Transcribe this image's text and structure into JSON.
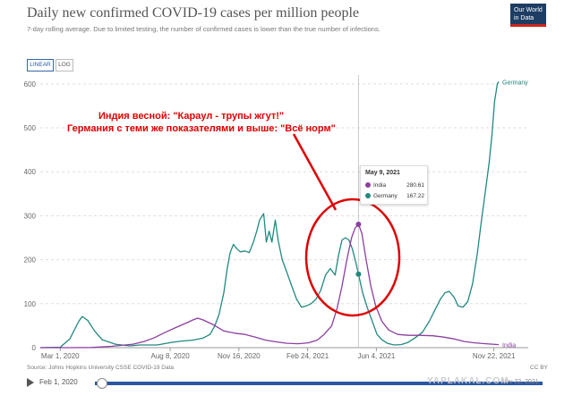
{
  "header": {
    "title": "Daily new confirmed COVID-19 cases per million people",
    "subtitle": "7-day rolling average. Due to limited testing, the number of confirmed cases is lower than the true number of infections.",
    "logo_text": "Our World in Data"
  },
  "toggles": {
    "linear": "LINEAR",
    "log": "LOG",
    "active": "linear"
  },
  "footer": {
    "source": "Source: Johns Hopkins University CSSE COVID-19 Data",
    "license": "CC BY",
    "timeline_start": "Feb 1, 2020",
    "timeline_end": "Nov 22, 2021"
  },
  "watermark": "YAPLAKAL.COM",
  "annotation": {
    "line1": "Индия весной: \"Караул - трупы жгут!\"",
    "line2": "Германия с теми же показателями и выше: \"Всё норм\""
  },
  "tooltip": {
    "date": "May 9, 2021",
    "rows": [
      {
        "name": "India",
        "value": "280.61"
      },
      {
        "name": "Germany",
        "value": "167.22"
      }
    ]
  },
  "chart_data": {
    "type": "line",
    "title": "Daily new confirmed COVID-19 cases per million people",
    "x_start": "2020-02-01",
    "x_end": "2021-11-29",
    "ylim": [
      0,
      620
    ],
    "yticks": [
      0,
      100,
      200,
      300,
      400,
      500,
      600
    ],
    "xticks": [
      "Mar 1, 2020",
      "Aug 8, 2020",
      "Nov 16, 2020",
      "Feb 24, 2021",
      "Jun 4, 2021",
      "Nov 22, 2021"
    ],
    "xtick_dates": [
      "2020-03-01",
      "2020-08-08",
      "2020-11-16",
      "2021-02-24",
      "2021-06-04",
      "2021-11-22"
    ],
    "grid": "horizontal dashed",
    "series": [
      {
        "name": "Germany",
        "color": "#21897e",
        "points": [
          [
            "2020-02-01",
            0
          ],
          [
            "2020-03-01",
            1
          ],
          [
            "2020-03-15",
            20
          ],
          [
            "2020-03-28",
            60
          ],
          [
            "2020-04-02",
            71
          ],
          [
            "2020-04-10",
            62
          ],
          [
            "2020-04-20",
            38
          ],
          [
            "2020-05-01",
            18
          ],
          [
            "2020-05-20",
            8
          ],
          [
            "2020-06-10",
            4
          ],
          [
            "2020-06-25",
            6
          ],
          [
            "2020-07-20",
            6
          ],
          [
            "2020-08-10",
            12
          ],
          [
            "2020-08-25",
            15
          ],
          [
            "2020-09-10",
            17
          ],
          [
            "2020-09-25",
            22
          ],
          [
            "2020-10-05",
            30
          ],
          [
            "2020-10-12",
            50
          ],
          [
            "2020-10-18",
            75
          ],
          [
            "2020-10-25",
            125
          ],
          [
            "2020-10-30",
            180
          ],
          [
            "2020-11-03",
            215
          ],
          [
            "2020-11-08",
            235
          ],
          [
            "2020-11-13",
            225
          ],
          [
            "2020-11-18",
            218
          ],
          [
            "2020-11-25",
            220
          ],
          [
            "2020-12-01",
            216
          ],
          [
            "2020-12-07",
            240
          ],
          [
            "2020-12-12",
            265
          ],
          [
            "2020-12-16",
            290
          ],
          [
            "2020-12-22",
            305
          ],
          [
            "2020-12-26",
            240
          ],
          [
            "2020-12-30",
            265
          ],
          [
            "2021-01-03",
            240
          ],
          [
            "2021-01-08",
            290
          ],
          [
            "2021-01-12",
            245
          ],
          [
            "2021-01-18",
            200
          ],
          [
            "2021-01-25",
            170
          ],
          [
            "2021-02-01",
            140
          ],
          [
            "2021-02-08",
            110
          ],
          [
            "2021-02-15",
            92
          ],
          [
            "2021-02-22",
            95
          ],
          [
            "2021-03-01",
            100
          ],
          [
            "2021-03-08",
            110
          ],
          [
            "2021-03-15",
            130
          ],
          [
            "2021-03-22",
            165
          ],
          [
            "2021-03-29",
            180
          ],
          [
            "2021-04-05",
            165
          ],
          [
            "2021-04-10",
            210
          ],
          [
            "2021-04-15",
            245
          ],
          [
            "2021-04-20",
            250
          ],
          [
            "2021-04-25",
            245
          ],
          [
            "2021-04-30",
            225
          ],
          [
            "2021-05-05",
            195
          ],
          [
            "2021-05-09",
            167.22
          ],
          [
            "2021-05-15",
            125
          ],
          [
            "2021-05-22",
            90
          ],
          [
            "2021-05-29",
            60
          ],
          [
            "2021-06-05",
            30
          ],
          [
            "2021-06-12",
            18
          ],
          [
            "2021-06-20",
            10
          ],
          [
            "2021-06-30",
            6
          ],
          [
            "2021-07-10",
            7
          ],
          [
            "2021-07-20",
            12
          ],
          [
            "2021-07-30",
            22
          ],
          [
            "2021-08-10",
            35
          ],
          [
            "2021-08-20",
            60
          ],
          [
            "2021-08-28",
            85
          ],
          [
            "2021-09-05",
            110
          ],
          [
            "2021-09-12",
            125
          ],
          [
            "2021-09-18",
            128
          ],
          [
            "2021-09-25",
            115
          ],
          [
            "2021-10-01",
            95
          ],
          [
            "2021-10-08",
            92
          ],
          [
            "2021-10-15",
            105
          ],
          [
            "2021-10-22",
            145
          ],
          [
            "2021-10-29",
            215
          ],
          [
            "2021-11-04",
            290
          ],
          [
            "2021-11-10",
            360
          ],
          [
            "2021-11-15",
            420
          ],
          [
            "2021-11-19",
            480
          ],
          [
            "2021-11-23",
            560
          ],
          [
            "2021-11-27",
            600
          ],
          [
            "2021-11-29",
            605
          ]
        ]
      },
      {
        "name": "India",
        "color": "#8c3fa0",
        "points": [
          [
            "2020-02-01",
            0
          ],
          [
            "2020-03-15",
            0
          ],
          [
            "2020-04-15",
            0.5
          ],
          [
            "2020-05-15",
            3
          ],
          [
            "2020-06-15",
            8
          ],
          [
            "2020-07-01",
            14
          ],
          [
            "2020-07-15",
            22
          ],
          [
            "2020-08-01",
            35
          ],
          [
            "2020-08-15",
            45
          ],
          [
            "2020-08-30",
            55
          ],
          [
            "2020-09-10",
            63
          ],
          [
            "2020-09-17",
            67
          ],
          [
            "2020-09-25",
            63
          ],
          [
            "2020-10-10",
            52
          ],
          [
            "2020-10-25",
            38
          ],
          [
            "2020-11-10",
            33
          ],
          [
            "2020-11-25",
            30
          ],
          [
            "2020-12-10",
            24
          ],
          [
            "2020-12-25",
            17
          ],
          [
            "2021-01-10",
            13
          ],
          [
            "2021-01-25",
            10
          ],
          [
            "2021-02-10",
            9
          ],
          [
            "2021-02-25",
            11
          ],
          [
            "2021-03-10",
            17
          ],
          [
            "2021-03-20",
            30
          ],
          [
            "2021-03-31",
            50
          ],
          [
            "2021-04-08",
            90
          ],
          [
            "2021-04-15",
            140
          ],
          [
            "2021-04-22",
            200
          ],
          [
            "2021-04-29",
            250
          ],
          [
            "2021-05-04",
            272
          ],
          [
            "2021-05-09",
            280.61
          ],
          [
            "2021-05-14",
            260
          ],
          [
            "2021-05-20",
            200
          ],
          [
            "2021-05-27",
            140
          ],
          [
            "2021-06-03",
            95
          ],
          [
            "2021-06-12",
            60
          ],
          [
            "2021-06-22",
            40
          ],
          [
            "2021-07-05",
            30
          ],
          [
            "2021-07-20",
            28
          ],
          [
            "2021-08-05",
            28
          ],
          [
            "2021-08-25",
            27
          ],
          [
            "2021-09-10",
            24
          ],
          [
            "2021-09-25",
            20
          ],
          [
            "2021-10-10",
            14
          ],
          [
            "2021-10-25",
            11
          ],
          [
            "2021-11-10",
            9
          ],
          [
            "2021-11-29",
            7
          ]
        ]
      }
    ]
  }
}
